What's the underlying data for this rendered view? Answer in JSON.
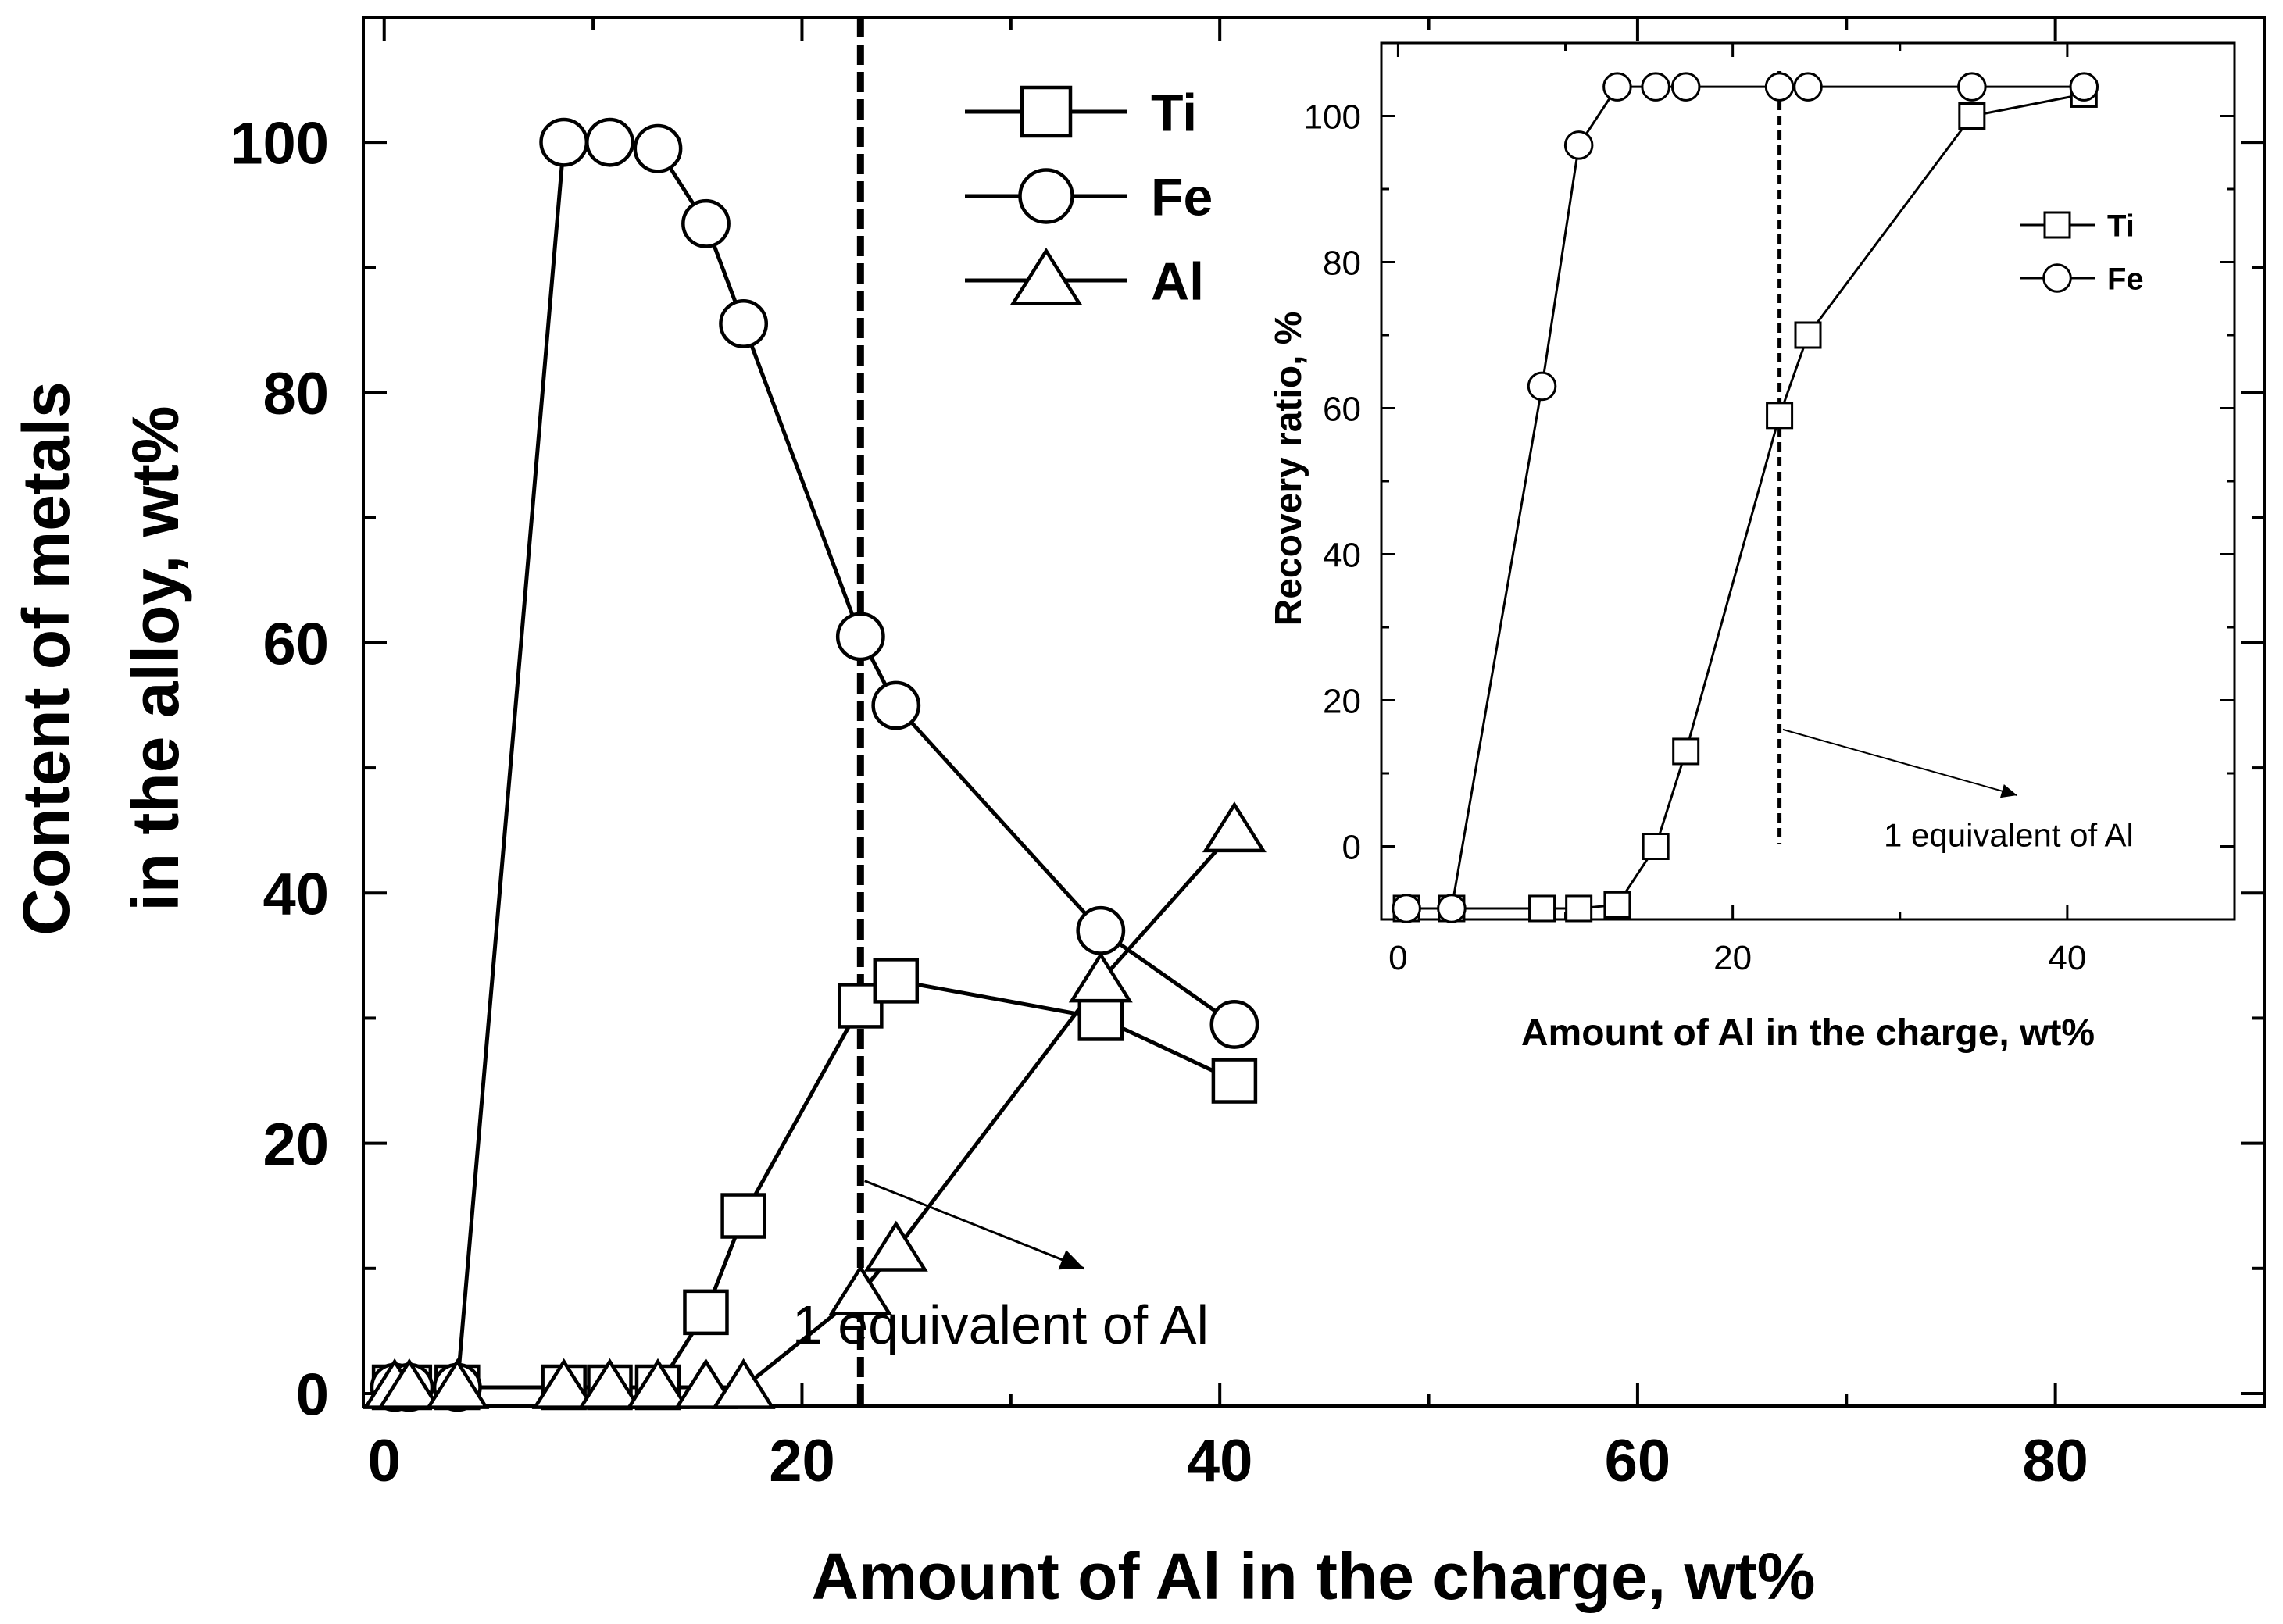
{
  "chart_data": [
    {
      "type": "line",
      "xlabel": "Amount of Al in the charge, wt%",
      "ylabel": [
        "Content of metals",
        "in the alloy, wt%"
      ],
      "xlim": [
        -1,
        90
      ],
      "ylim": [
        -1,
        110
      ],
      "xticks": [
        0,
        20,
        40,
        60,
        80
      ],
      "yticks": [
        0,
        20,
        40,
        60,
        80,
        100
      ],
      "x_minor_step": 10,
      "y_minor_step": 10,
      "grid": false,
      "legend_position": "top-center",
      "series": [
        {
          "name": "Ti",
          "marker": "square",
          "points": [
            [
              0.5,
              0.5
            ],
            [
              1.2,
              0.5
            ],
            [
              3.5,
              0.5
            ],
            [
              8.6,
              0.5
            ],
            [
              10.8,
              0.5
            ],
            [
              13.1,
              0.5
            ],
            [
              15.4,
              6.5
            ],
            [
              17.2,
              14.2
            ],
            [
              22.8,
              31
            ],
            [
              24.5,
              33
            ],
            [
              34.3,
              30
            ],
            [
              40.7,
              25
            ]
          ]
        },
        {
          "name": "Fe",
          "marker": "circle",
          "points": [
            [
              0.5,
              0.5
            ],
            [
              1.2,
              0.5
            ],
            [
              3.5,
              0.5
            ],
            [
              8.6,
              100
            ],
            [
              10.8,
              100
            ],
            [
              13.1,
              99.5
            ],
            [
              15.4,
              93.5
            ],
            [
              17.2,
              85.5
            ],
            [
              22.8,
              60.5
            ],
            [
              24.5,
              55
            ],
            [
              34.3,
              37
            ],
            [
              40.7,
              29.5
            ]
          ]
        },
        {
          "name": "Al",
          "marker": "triangle",
          "points": [
            [
              0.5,
              0.5
            ],
            [
              1.2,
              0.5
            ],
            [
              3.5,
              0.5
            ],
            [
              8.6,
              0.5
            ],
            [
              10.8,
              0.5
            ],
            [
              13.1,
              0.5
            ],
            [
              15.4,
              0.5
            ],
            [
              17.2,
              0.5
            ],
            [
              22.8,
              8
            ],
            [
              24.5,
              11.5
            ],
            [
              34.3,
              33
            ],
            [
              40.7,
              45
            ]
          ]
        }
      ],
      "equivalence_line_x": 22.8,
      "annotation": {
        "text": "1 equivalent of Al",
        "arrow_from": [
          23,
          17
        ],
        "arrow_to": [
          33.5,
          10
        ],
        "text_at": [
          29.5,
          4
        ]
      }
    },
    {
      "type": "line",
      "inset": true,
      "xlabel": "Amount of Al in the charge, wt%",
      "ylabel": "Recovery ratio, %",
      "xlim": [
        -1,
        50
      ],
      "ylim": [
        -10,
        110
      ],
      "xticks": [
        0,
        20,
        40
      ],
      "yticks": [
        0,
        20,
        40,
        60,
        80,
        100
      ],
      "x_minor_step": 10,
      "y_minor_step": 10,
      "grid": false,
      "legend_position": "right",
      "series": [
        {
          "name": "Ti",
          "marker": "square",
          "points": [
            [
              0.5,
              -8.5
            ],
            [
              3.2,
              -8.5
            ],
            [
              8.6,
              -8.5
            ],
            [
              10.8,
              -8.5
            ],
            [
              13.1,
              -8
            ],
            [
              15.4,
              0
            ],
            [
              17.2,
              13
            ],
            [
              22.8,
              59
            ],
            [
              24.5,
              70
            ],
            [
              34.3,
              100
            ],
            [
              41,
              103
            ]
          ]
        },
        {
          "name": "Fe",
          "marker": "circle",
          "points": [
            [
              0.5,
              -8.5
            ],
            [
              3.2,
              -8.5
            ],
            [
              8.6,
              63
            ],
            [
              10.8,
              96
            ],
            [
              13.1,
              104
            ],
            [
              15.4,
              104
            ],
            [
              17.2,
              104
            ],
            [
              22.8,
              104
            ],
            [
              24.5,
              104
            ],
            [
              34.3,
              104
            ],
            [
              41,
              104
            ]
          ]
        }
      ],
      "equivalence_line_x": 22.8,
      "annotation": {
        "text": "1 equivalent of Al",
        "arrow_from": [
          23,
          16
        ],
        "arrow_to": [
          37,
          7
        ],
        "text_at": [
          36.5,
          0
        ]
      }
    }
  ]
}
